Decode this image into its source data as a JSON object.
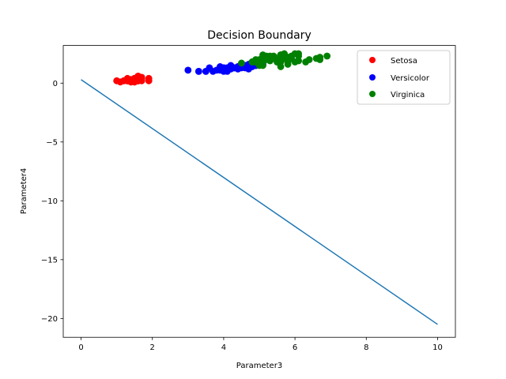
{
  "chart_data": {
    "type": "scatter",
    "title": "Decision Boundary",
    "xlabel": "Parameter3",
    "ylabel": "Parameter4",
    "xlim": [
      -0.5,
      10.5
    ],
    "ylim": [
      -21.6,
      3.2
    ],
    "xticks": [
      0,
      2,
      4,
      6,
      8,
      10
    ],
    "yticks": [
      0,
      -5,
      -10,
      -15,
      -20
    ],
    "ytick_labels": [
      "0",
      "−5",
      "−10",
      "−15",
      "−20"
    ],
    "grid": false,
    "legend_position": "top-right",
    "series": [
      {
        "name": "Setosa",
        "kind": "scatter",
        "color": "#ff0000",
        "points": [
          [
            1.4,
            0.2
          ],
          [
            1.4,
            0.2
          ],
          [
            1.3,
            0.2
          ],
          [
            1.5,
            0.2
          ],
          [
            1.4,
            0.2
          ],
          [
            1.7,
            0.4
          ],
          [
            1.4,
            0.3
          ],
          [
            1.5,
            0.2
          ],
          [
            1.4,
            0.2
          ],
          [
            1.5,
            0.1
          ],
          [
            1.5,
            0.2
          ],
          [
            1.6,
            0.2
          ],
          [
            1.4,
            0.1
          ],
          [
            1.1,
            0.1
          ],
          [
            1.2,
            0.2
          ],
          [
            1.5,
            0.4
          ],
          [
            1.3,
            0.4
          ],
          [
            1.4,
            0.3
          ],
          [
            1.7,
            0.3
          ],
          [
            1.5,
            0.3
          ],
          [
            1.7,
            0.2
          ],
          [
            1.5,
            0.4
          ],
          [
            1.0,
            0.2
          ],
          [
            1.7,
            0.5
          ],
          [
            1.9,
            0.2
          ],
          [
            1.6,
            0.2
          ],
          [
            1.6,
            0.4
          ],
          [
            1.5,
            0.2
          ],
          [
            1.4,
            0.2
          ],
          [
            1.6,
            0.2
          ],
          [
            1.6,
            0.2
          ],
          [
            1.5,
            0.4
          ],
          [
            1.5,
            0.1
          ],
          [
            1.4,
            0.2
          ],
          [
            1.5,
            0.2
          ],
          [
            1.2,
            0.2
          ],
          [
            1.3,
            0.2
          ],
          [
            1.4,
            0.1
          ],
          [
            1.3,
            0.2
          ],
          [
            1.5,
            0.2
          ],
          [
            1.3,
            0.3
          ],
          [
            1.3,
            0.3
          ],
          [
            1.3,
            0.2
          ],
          [
            1.6,
            0.6
          ],
          [
            1.9,
            0.4
          ],
          [
            1.4,
            0.3
          ],
          [
            1.6,
            0.2
          ],
          [
            1.4,
            0.2
          ],
          [
            1.5,
            0.2
          ],
          [
            1.4,
            0.2
          ]
        ]
      },
      {
        "name": "Versicolor",
        "kind": "scatter",
        "color": "#0000ff",
        "points": [
          [
            4.7,
            1.4
          ],
          [
            4.5,
            1.5
          ],
          [
            4.9,
            1.5
          ],
          [
            4.0,
            1.3
          ],
          [
            4.6,
            1.5
          ],
          [
            4.5,
            1.3
          ],
          [
            4.7,
            1.6
          ],
          [
            3.3,
            1.0
          ],
          [
            4.6,
            1.3
          ],
          [
            3.9,
            1.4
          ],
          [
            3.5,
            1.0
          ],
          [
            4.2,
            1.5
          ],
          [
            4.0,
            1.0
          ],
          [
            4.7,
            1.4
          ],
          [
            3.6,
            1.3
          ],
          [
            4.4,
            1.4
          ],
          [
            4.5,
            1.5
          ],
          [
            4.1,
            1.0
          ],
          [
            4.5,
            1.5
          ],
          [
            3.9,
            1.1
          ],
          [
            4.8,
            1.8
          ],
          [
            4.0,
            1.3
          ],
          [
            4.9,
            1.5
          ],
          [
            4.7,
            1.2
          ],
          [
            4.3,
            1.3
          ],
          [
            4.4,
            1.4
          ],
          [
            4.8,
            1.4
          ],
          [
            5.0,
            1.7
          ],
          [
            4.5,
            1.5
          ],
          [
            3.5,
            1.0
          ],
          [
            3.8,
            1.1
          ],
          [
            3.7,
            1.0
          ],
          [
            3.9,
            1.2
          ],
          [
            5.1,
            1.6
          ],
          [
            4.5,
            1.5
          ],
          [
            4.5,
            1.6
          ],
          [
            4.7,
            1.5
          ],
          [
            4.4,
            1.3
          ],
          [
            4.1,
            1.3
          ],
          [
            4.0,
            1.3
          ],
          [
            4.4,
            1.2
          ],
          [
            4.6,
            1.4
          ],
          [
            4.0,
            1.2
          ],
          [
            3.3,
            1.0
          ],
          [
            4.2,
            1.3
          ],
          [
            4.2,
            1.2
          ],
          [
            4.2,
            1.3
          ],
          [
            4.3,
            1.3
          ],
          [
            3.0,
            1.1
          ],
          [
            4.1,
            1.3
          ]
        ]
      },
      {
        "name": "Virginica",
        "kind": "scatter",
        "color": "#008000",
        "points": [
          [
            6.0,
            2.5
          ],
          [
            5.1,
            1.9
          ],
          [
            5.9,
            2.1
          ],
          [
            5.6,
            1.8
          ],
          [
            5.8,
            2.2
          ],
          [
            6.6,
            2.1
          ],
          [
            4.5,
            1.7
          ],
          [
            6.3,
            1.8
          ],
          [
            5.8,
            1.8
          ],
          [
            6.1,
            2.5
          ],
          [
            5.1,
            2.0
          ],
          [
            5.3,
            1.9
          ],
          [
            5.5,
            2.1
          ],
          [
            5.0,
            2.0
          ],
          [
            5.1,
            2.4
          ],
          [
            5.3,
            2.3
          ],
          [
            5.5,
            1.8
          ],
          [
            6.7,
            2.2
          ],
          [
            6.9,
            2.3
          ],
          [
            5.0,
            1.5
          ],
          [
            5.7,
            2.3
          ],
          [
            4.9,
            2.0
          ],
          [
            6.7,
            2.0
          ],
          [
            4.9,
            1.8
          ],
          [
            5.7,
            2.1
          ],
          [
            6.0,
            1.8
          ],
          [
            4.8,
            1.8
          ],
          [
            4.9,
            1.8
          ],
          [
            5.6,
            2.1
          ],
          [
            5.8,
            1.6
          ],
          [
            6.1,
            1.9
          ],
          [
            6.4,
            2.0
          ],
          [
            5.6,
            2.2
          ],
          [
            5.1,
            1.5
          ],
          [
            5.6,
            1.4
          ],
          [
            6.1,
            2.3
          ],
          [
            5.6,
            2.4
          ],
          [
            5.5,
            1.8
          ],
          [
            4.8,
            1.8
          ],
          [
            5.4,
            2.1
          ],
          [
            5.6,
            2.4
          ],
          [
            5.1,
            2.3
          ],
          [
            5.1,
            1.9
          ],
          [
            5.9,
            2.3
          ],
          [
            5.7,
            2.5
          ],
          [
            5.2,
            2.3
          ],
          [
            5.0,
            1.9
          ],
          [
            5.2,
            2.0
          ],
          [
            5.4,
            2.3
          ],
          [
            5.1,
            1.8
          ]
        ]
      },
      {
        "kind": "line",
        "color": "#1f77b4",
        "points": [
          [
            0,
            0.3
          ],
          [
            10,
            -20.5
          ]
        ]
      }
    ]
  }
}
